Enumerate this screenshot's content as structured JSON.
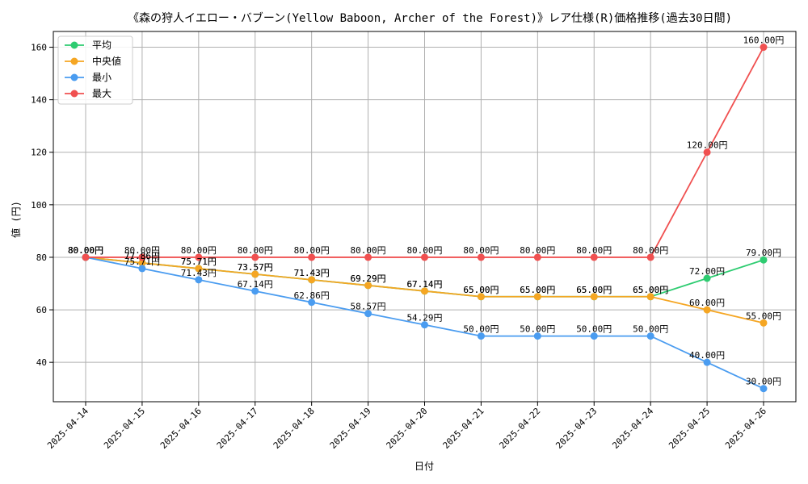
{
  "chart_data": {
    "type": "line",
    "title": "《森の狩人イエロー・バブーン(Yellow Baboon, Archer of the Forest)》レア仕様(R)価格推移(過去30日間)",
    "xlabel": "日付",
    "ylabel": "値 (円)",
    "ylim": [
      25,
      166
    ],
    "yticks": [
      40,
      60,
      80,
      100,
      120,
      140,
      160
    ],
    "grid": true,
    "legend_position": "top-left",
    "categories": [
      "2025-04-14",
      "2025-04-15",
      "2025-04-16",
      "2025-04-17",
      "2025-04-18",
      "2025-04-19",
      "2025-04-20",
      "2025-04-21",
      "2025-04-22",
      "2025-04-23",
      "2025-04-24",
      "2025-04-25",
      "2025-04-26"
    ],
    "series": [
      {
        "name": "平均",
        "color": "#2ecc71",
        "values": [
          80,
          77.86,
          75.71,
          73.57,
          71.43,
          69.29,
          67.14,
          65,
          65,
          65,
          65,
          72,
          79
        ]
      },
      {
        "name": "中央値",
        "color": "#f5a623",
        "values": [
          80,
          77.86,
          75.71,
          73.57,
          71.43,
          69.29,
          67.14,
          65,
          65,
          65,
          65,
          60,
          55
        ]
      },
      {
        "name": "最小",
        "color": "#4a9cf0",
        "values": [
          80,
          75.71,
          71.43,
          67.14,
          62.86,
          58.57,
          54.29,
          50,
          50,
          50,
          50,
          40,
          30
        ]
      },
      {
        "name": "最大",
        "color": "#f05050",
        "values": [
          80,
          80,
          80,
          80,
          80,
          80,
          80,
          80,
          80,
          80,
          80,
          120,
          160
        ]
      }
    ],
    "value_suffix": "円"
  }
}
